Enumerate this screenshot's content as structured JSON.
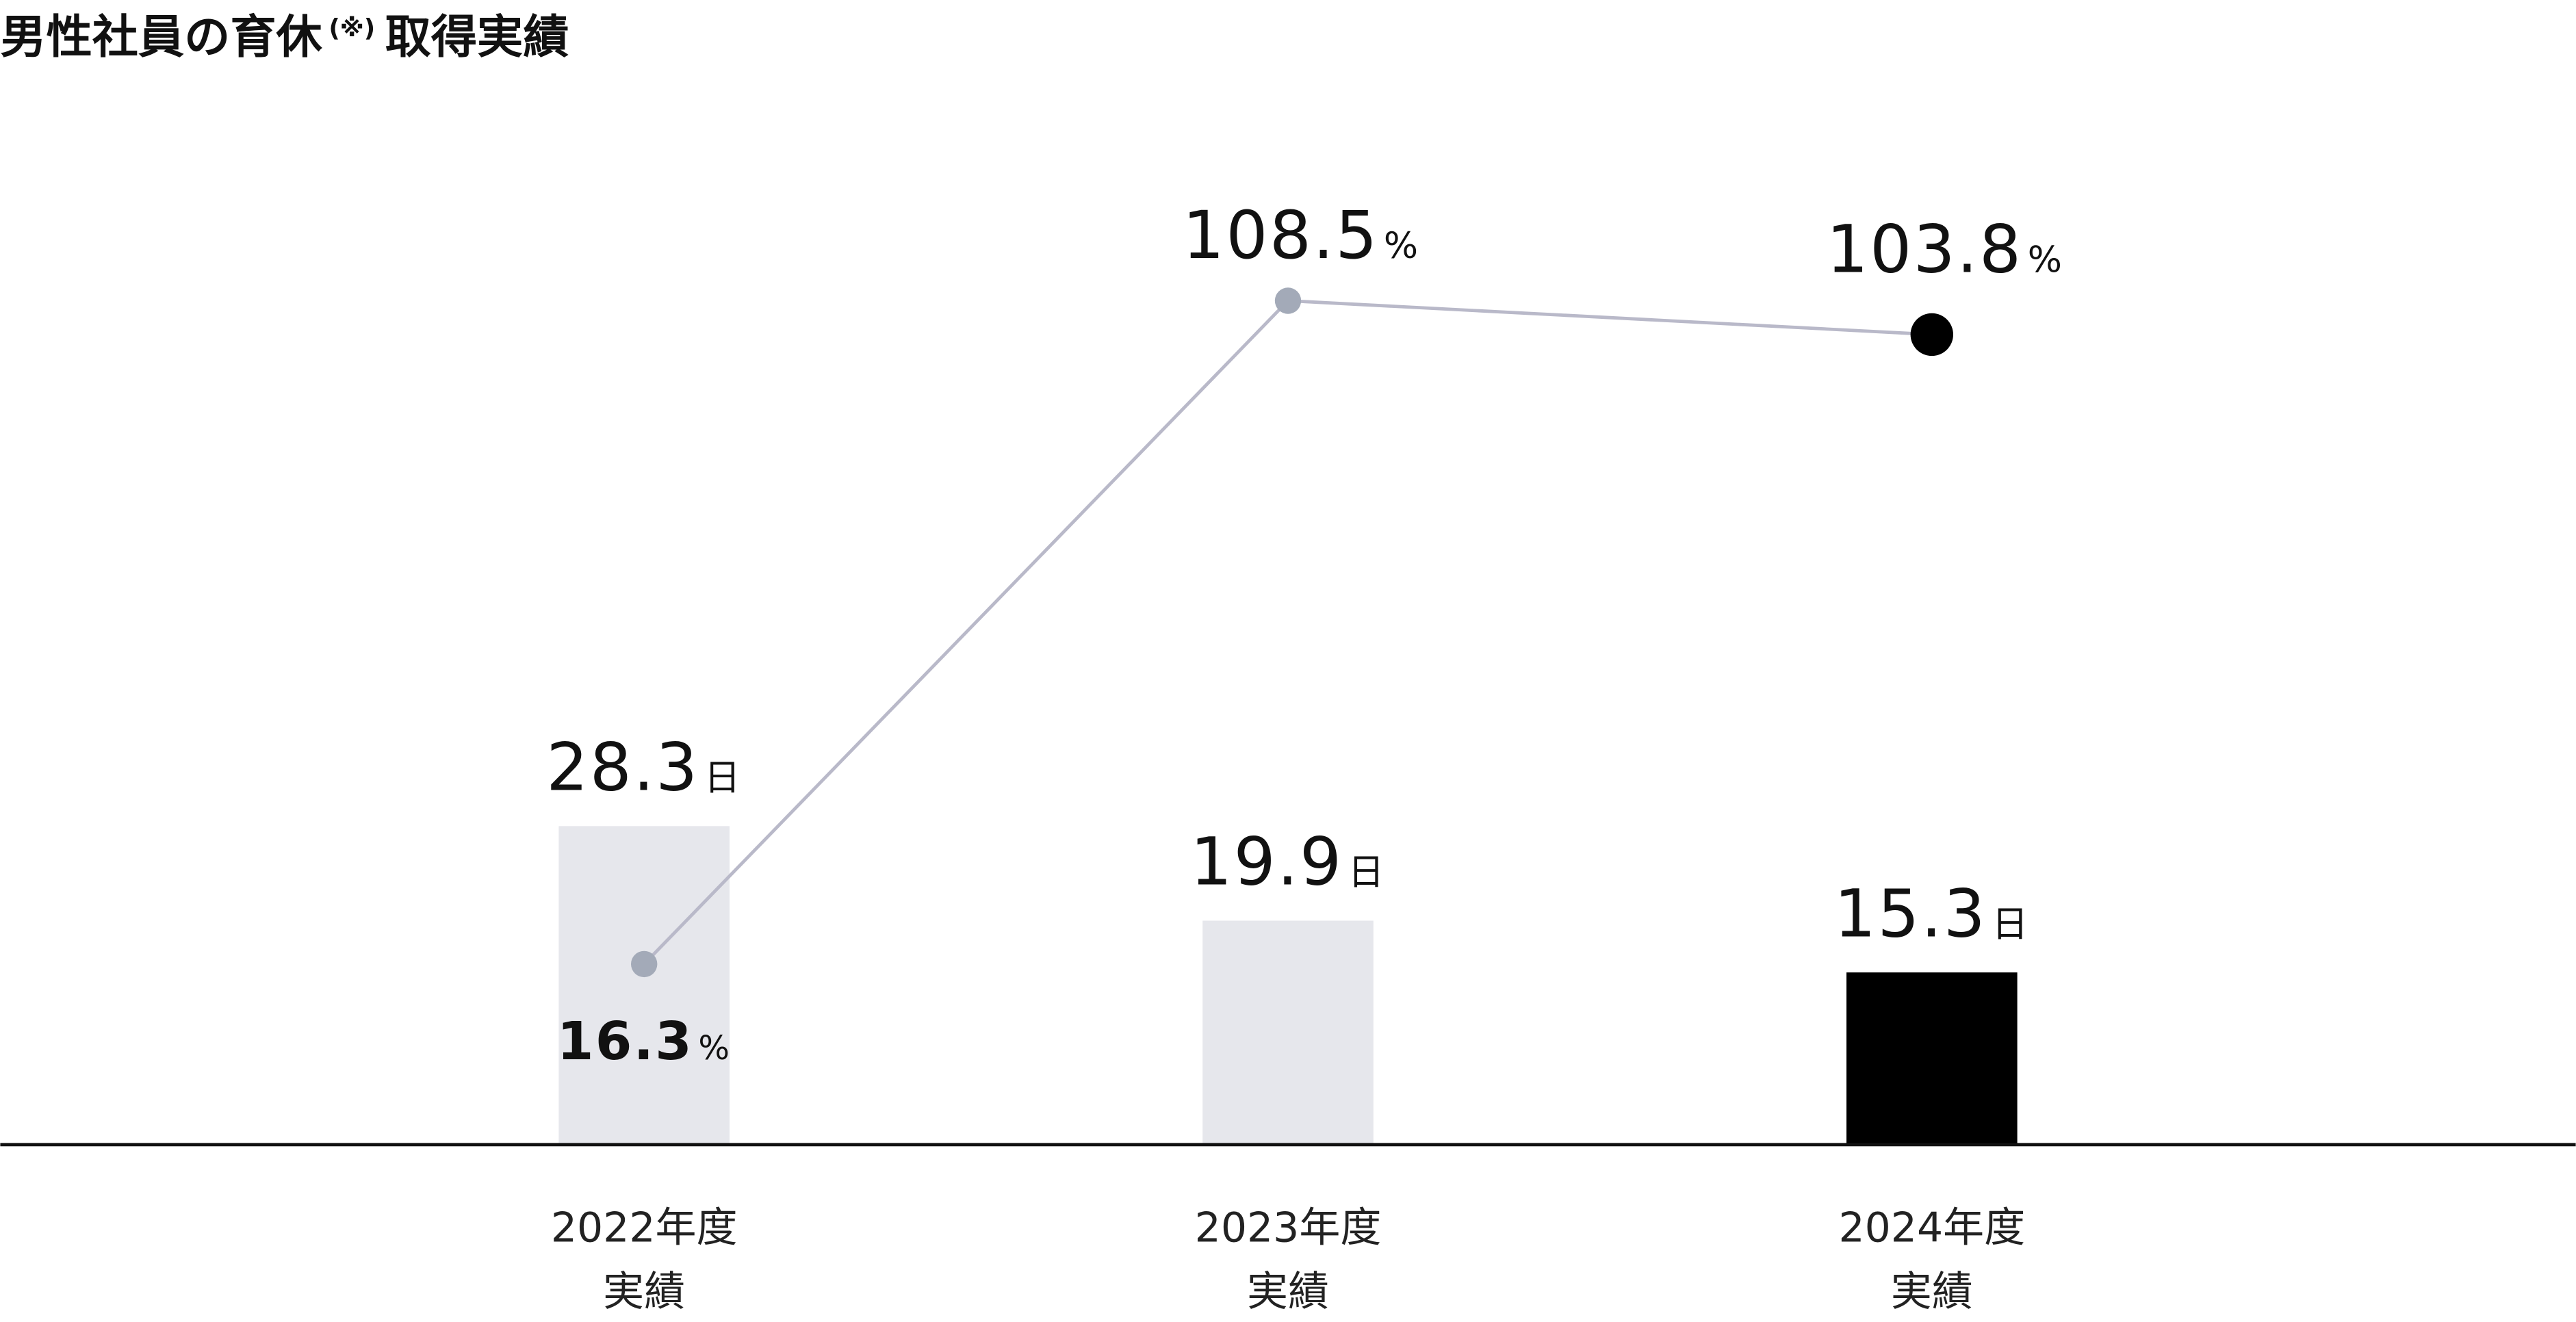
{
  "chart_data": {
    "type": "bar-line",
    "title": "男性社員の育休",
    "title_note": "(※)",
    "title_suffix": "取得実績",
    "categories": [
      "2022年度\n実績",
      "2023年度\n実績",
      "2024年度\n実績"
    ],
    "series": [
      {
        "type": "bar",
        "unit": "日",
        "values": [
          28.3,
          19.9,
          15.3
        ],
        "colors": [
          "#e6e7ec",
          "#e6e7ec",
          "#000000"
        ]
      },
      {
        "type": "line",
        "axis": "y2",
        "unit": "%",
        "values": [
          16.3,
          108.5,
          103.8
        ],
        "color": "#b9b9c9",
        "point_colors": [
          "#a3aab8",
          "#a3aab8",
          "#000000"
        ]
      }
    ],
    "ylim": [
      0,
      101.7
    ],
    "y2lim": [
      -8.8,
      150.3
    ]
  }
}
